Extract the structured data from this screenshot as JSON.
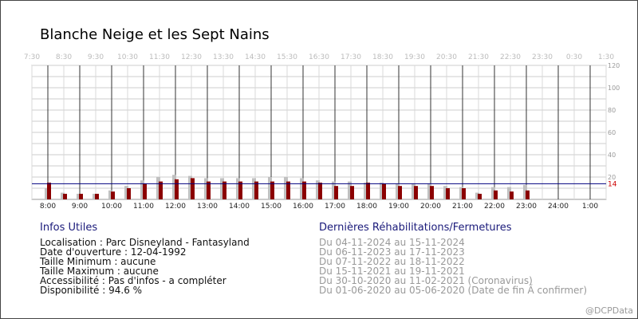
{
  "title": "Blanche Neige et les Sept Nains",
  "credit": "@DCPData",
  "colors": {
    "current": "#8b0000",
    "previous": "#c0c0c0",
    "ref_line": "#000080",
    "grid": "#cccccc",
    "accent_text": "#1a1a7a"
  },
  "chart_data": {
    "type": "bar",
    "title": "Blanche Neige et les Sept Nains",
    "xlabel": "",
    "ylabel": "",
    "ylim": [
      0,
      120
    ],
    "y_ticks": [
      "20",
      "40",
      "60",
      "80",
      "100",
      "120"
    ],
    "grid": true,
    "top_axis_ticks": [
      "7:30",
      "8:30",
      "9:30",
      "10:30",
      "11:30",
      "12:30",
      "13:30",
      "14:30",
      "15:30",
      "16:30",
      "17:30",
      "18:30",
      "19:30",
      "20:30",
      "21:30",
      "22:30",
      "23:30",
      "0:30",
      "1:30"
    ],
    "bottom_axis_ticks": [
      "8:00",
      "9:00",
      "10:00",
      "11:00",
      "12:00",
      "13:00",
      "14:00",
      "15:00",
      "16:00",
      "17:00",
      "18:00",
      "19:00",
      "20:00",
      "21:00",
      "22:00",
      "23:00",
      "24:00",
      "1:00"
    ],
    "reference_line": {
      "value": 14,
      "label": "14"
    },
    "categories": [
      "8:00",
      "8:30",
      "9:00",
      "9:30",
      "10:00",
      "10:30",
      "11:00",
      "11:30",
      "12:00",
      "12:30",
      "13:00",
      "13:30",
      "14:00",
      "14:30",
      "15:00",
      "15:30",
      "16:00",
      "16:30",
      "17:00",
      "17:30",
      "18:00",
      "18:30",
      "19:00",
      "19:30",
      "20:00",
      "20:30",
      "21:00",
      "21:30",
      "22:00",
      "22:30",
      "23:00",
      "23:30"
    ],
    "series": [
      {
        "values": [
          15,
          5,
          5,
          5,
          7,
          10,
          14,
          16,
          18,
          19,
          16,
          16,
          16,
          16,
          16,
          16,
          16,
          15,
          12,
          12,
          15,
          14,
          12,
          12,
          12,
          10,
          10,
          5,
          8,
          7,
          8,
          null
        ]
      },
      {
        "values": [
          10,
          6,
          5,
          5,
          8,
          12,
          17,
          20,
          22,
          21,
          19,
          19,
          19,
          19,
          20,
          20,
          19,
          17,
          16,
          16,
          15,
          15,
          14,
          14,
          14,
          12,
          11,
          6,
          11,
          11,
          13,
          null
        ]
      }
    ]
  },
  "infos": {
    "heading": "Infos Utiles",
    "lines": [
      "Localisation : Parc Disneyland - Fantasyland",
      "Date d'ouverture : 12-04-1992",
      "Taille Minimum : aucune",
      "Taille Maximum : aucune",
      "Accessibilité : Pas d'infos - a compléter",
      "Disponibilité : 94.6 %"
    ]
  },
  "rehab": {
    "heading": "Dernières Réhabilitations/Fermetures",
    "lines": [
      "Du 04-11-2024 au 15-11-2024",
      "Du 06-11-2023 au 17-11-2023",
      "Du 07-11-2022 au 18-11-2022",
      "Du 15-11-2021 au 19-11-2021",
      "Du 30-10-2020 au 11-02-2021 (Coronavirus)",
      "Du 01-06-2020 au 05-06-2020 (Date de fin Ã  confirmer)"
    ]
  }
}
